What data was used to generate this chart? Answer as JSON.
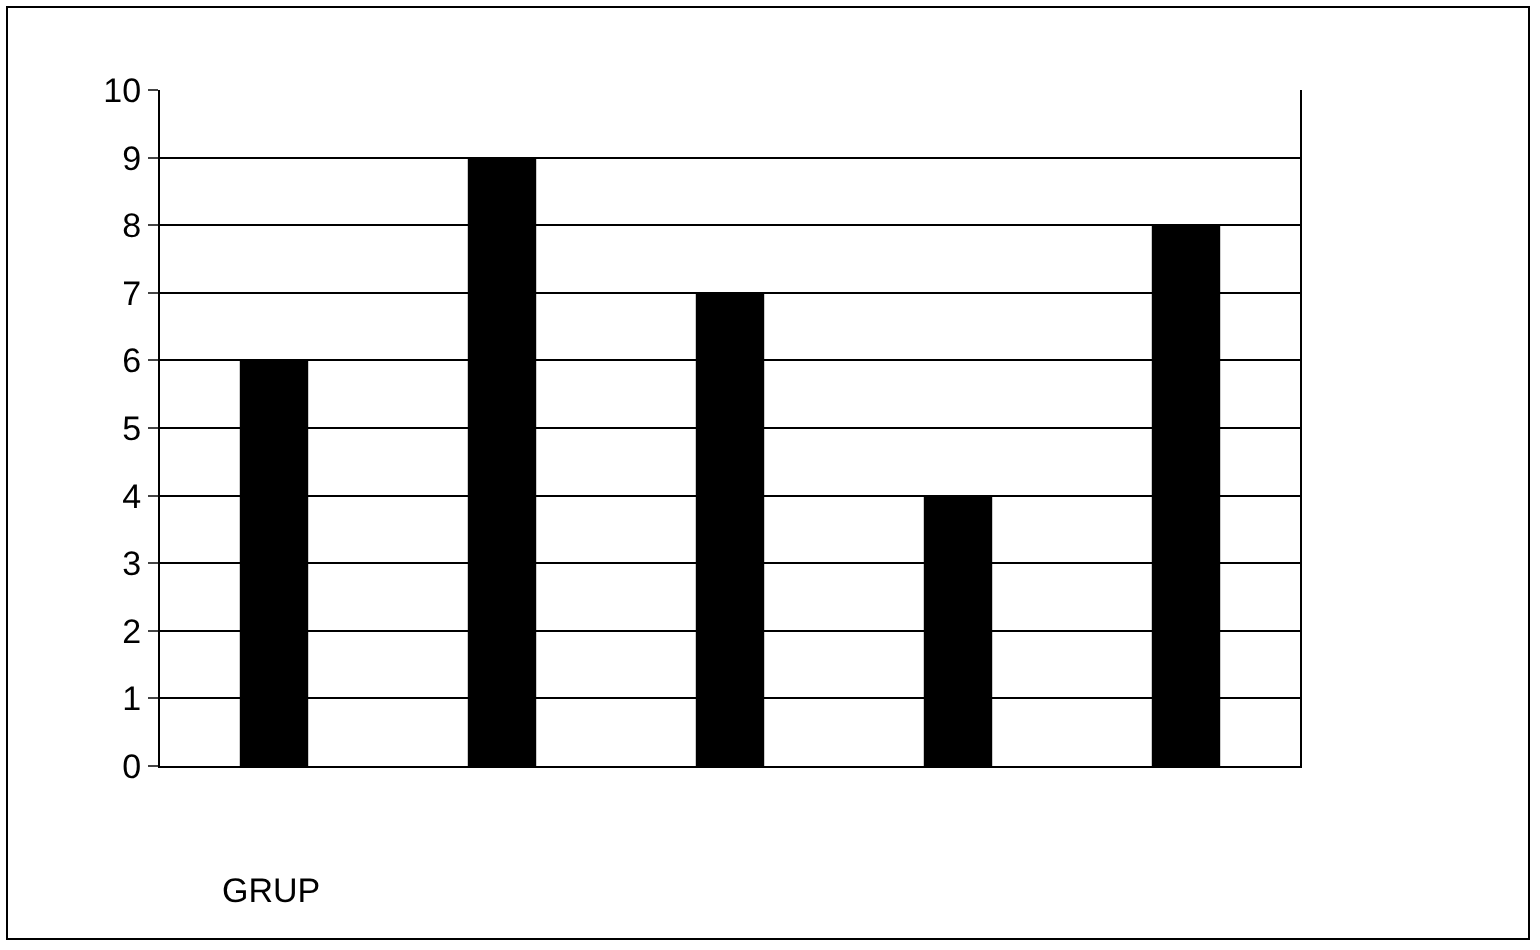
{
  "chart_data": {
    "type": "bar",
    "xlabel": "GRUP",
    "categories": [
      null,
      null,
      null,
      null,
      null
    ],
    "values": [
      6,
      9,
      7,
      4,
      8
    ],
    "color": "#000000",
    "ylim": [
      0,
      10
    ],
    "yticks": [
      0,
      1,
      2,
      3,
      4,
      5,
      6,
      7,
      8,
      9,
      10
    ],
    "grid": "y",
    "legend": false
  }
}
